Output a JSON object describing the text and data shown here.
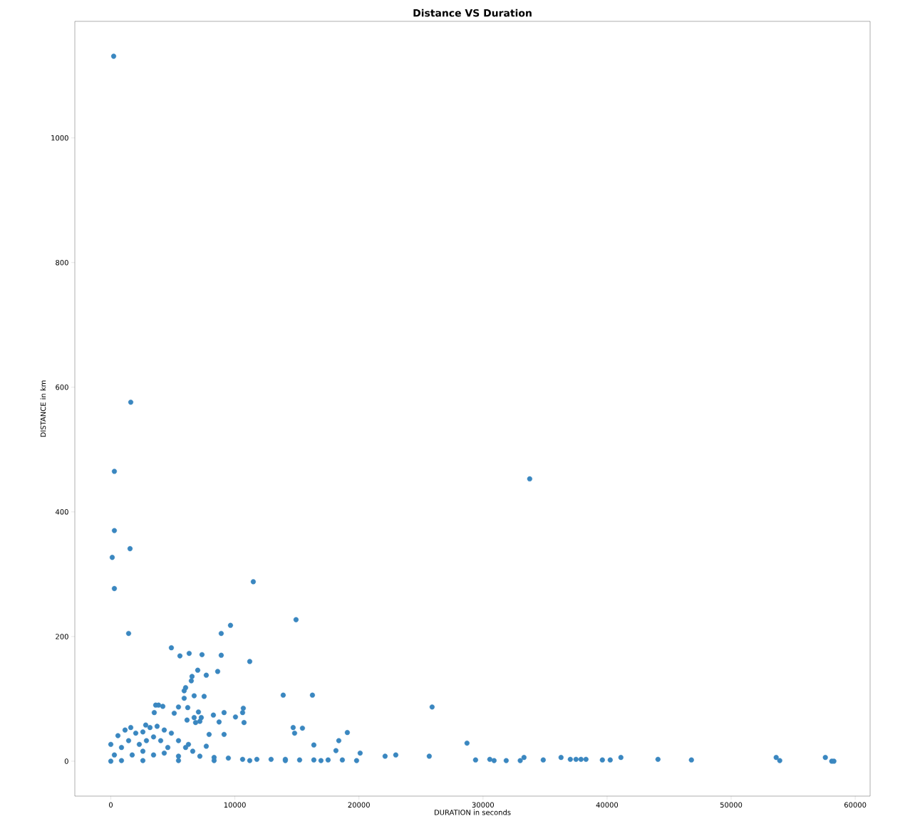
{
  "chart_data": {
    "type": "scatter",
    "title": "Distance VS Duration",
    "xlabel": "DURATION in seconds",
    "ylabel": "DISTANCE in km",
    "color": "#3a87c0",
    "marker": "circle",
    "grid": false,
    "xlim": [
      -2900,
      61200
    ],
    "ylim": [
      -56,
      1187
    ],
    "xticks": [
      0,
      10000,
      20000,
      30000,
      40000,
      50000,
      60000
    ],
    "yticks": [
      0,
      200,
      400,
      600,
      800,
      1000
    ],
    "x": [
      230,
      1608,
      287,
      287,
      115,
      287,
      1550,
      1435,
      33763,
      11484,
      14929,
      9646,
      8900,
      4881,
      5570,
      6316,
      7350,
      8900,
      11197,
      7005,
      8613,
      7694,
      6546,
      6488,
      6029,
      5914,
      6718,
      7522,
      13896,
      16250,
      5914,
      25897,
      3617,
      3847,
      4192,
      5455,
      6201,
      10680,
      3502,
      7063,
      9130,
      10623,
      5111,
      8268,
      10049,
      6718,
      7292,
      6144,
      7177,
      8728,
      10738,
      6833,
      2814,
      14699,
      15446,
      1608,
      19064,
      14814,
      9130,
      7924,
      18375,
      28710,
      16365,
      6259,
      7694,
      18145,
      20097,
      22107,
      22968,
      25667,
      33304,
      36290,
      37037,
      37496,
      37898,
      38300,
      39620,
      40252,
      41113,
      44102,
      46797,
      53630,
      53917,
      57592,
      58109,
      58281,
      34855,
      29400,
      30893,
      31870,
      33000,
      30548,
      0,
      574,
      1148,
      2010,
      2584,
      3158,
      3732,
      4307,
      4881,
      5455,
      6029,
      6603,
      287,
      861,
      1435,
      2297,
      2871,
      3445,
      4020,
      4594,
      1723,
      2584,
      3445,
      4307,
      5455,
      7177,
      8326,
      9474,
      10623,
      11771,
      12919,
      14068,
      15217,
      16365,
      17514,
      18662,
      0,
      861,
      2584,
      5455,
      8326,
      11197,
      14068,
      16939,
      19810
    ],
    "values": [
      1131,
      576,
      465,
      370,
      327,
      277,
      341,
      205,
      453,
      288,
      227,
      218,
      205,
      182,
      169,
      173,
      171,
      170,
      160,
      146,
      144,
      138,
      136,
      129,
      118,
      113,
      105,
      104,
      106,
      106,
      101,
      87,
      90,
      90,
      88,
      87,
      86,
      85,
      78,
      79,
      78,
      78,
      77,
      74,
      71,
      70,
      70,
      66,
      64,
      63,
      62,
      62,
      58,
      54,
      53,
      54,
      46,
      45,
      43,
      43,
      33,
      29,
      26,
      27,
      24,
      17,
      13,
      8,
      10,
      8,
      6,
      6,
      3,
      3,
      3,
      3,
      2,
      2,
      6,
      3,
      2,
      6,
      1,
      6,
      0,
      0,
      2,
      2,
      1,
      1,
      1,
      3,
      27,
      41,
      50,
      45,
      47,
      54,
      56,
      50,
      45,
      33,
      22,
      16,
      10,
      22,
      33,
      27,
      33,
      39,
      33,
      22,
      10,
      16,
      10,
      13,
      8,
      8,
      6,
      5,
      3,
      3,
      3,
      3,
      2,
      2,
      2,
      2,
      0,
      1,
      1,
      1,
      1,
      1,
      1,
      1,
      1
    ]
  }
}
